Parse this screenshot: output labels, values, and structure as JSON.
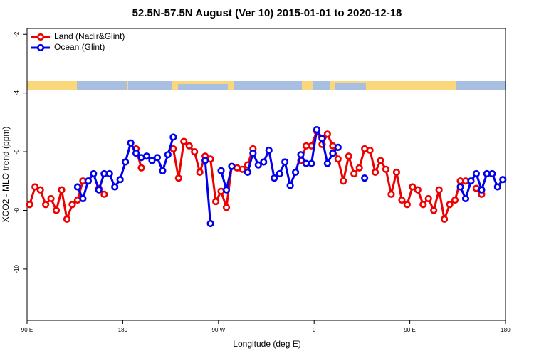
{
  "chart_data": {
    "type": "line",
    "title": "52.5N-57.5N August (Ver 10)   2015-01-01 to 2020-12-18",
    "x_label": "Longitude (deg E)",
    "y_label": "XCO2 - MLO trend (ppm)",
    "legend": "top-left",
    "xlim": [
      90,
      540
    ],
    "ylim": [
      -11.75,
      -1.8
    ],
    "xticks": [
      {
        "value": 90,
        "label": "90 E"
      },
      180,
      {
        "value": 270,
        "label": "90 W"
      },
      {
        "value": 360,
        "label": "0"
      },
      {
        "value": 450,
        "label": "90 E"
      },
      {
        "value": 540,
        "label": "180"
      }
    ],
    "yticks": [
      -2,
      -4,
      -6,
      -8,
      -10
    ],
    "x": [
      92.5,
      97.5,
      102.5,
      107.5,
      112.5,
      117.5,
      122.5,
      127.5,
      132.5,
      137.5,
      142.5,
      147.5,
      152.5,
      157.5,
      162.5,
      167.5,
      172.5,
      177.5,
      182.5,
      187.5,
      192.5,
      197.5,
      202.5,
      207.5,
      212.5,
      217.5,
      222.5,
      227.5,
      232.5,
      237.5,
      242.5,
      247.5,
      252.5,
      257.5,
      262.5,
      267.5,
      272.5,
      277.5,
      282.5,
      287.5,
      292.5,
      297.5,
      302.5,
      307.5,
      312.5,
      317.5,
      322.5,
      327.5,
      332.5,
      337.5,
      342.5,
      347.5,
      352.5,
      357.5,
      362.5,
      367.5,
      372.5,
      377.5,
      382.5,
      387.5,
      392.5,
      397.5,
      402.5,
      407.5,
      412.5,
      417.5,
      422.5,
      427.5,
      432.5,
      437.5,
      442.5,
      447.5,
      452.5,
      457.5,
      462.5,
      467.5,
      472.5,
      477.5,
      482.5,
      487.5,
      492.5,
      497.5,
      502.5,
      507.5,
      512.5,
      517.5,
      522.5,
      527.5,
      532.5,
      537.5
    ],
    "series": [
      {
        "name": "Land (Nadir&Glint)",
        "color": "#ee0000",
        "values": [
          -7.8,
          -7.2,
          -7.3,
          -7.8,
          -7.6,
          -8.0,
          -7.3,
          -8.3,
          -7.8,
          -7.65,
          -7.0,
          -7.0,
          null,
          -7.25,
          -7.45,
          null,
          null,
          null,
          null,
          null,
          -5.9,
          -6.55,
          null,
          null,
          null,
          null,
          null,
          -5.9,
          -6.9,
          -5.65,
          -5.8,
          -6.0,
          -6.7,
          -6.15,
          -6.25,
          -7.7,
          -7.35,
          -7.9,
          -6.5,
          -6.55,
          -6.6,
          -6.45,
          -5.9,
          null,
          null,
          null,
          null,
          null,
          null,
          null,
          null,
          -6.3,
          -5.8,
          -5.8,
          -5.3,
          -5.75,
          -5.4,
          -5.8,
          -6.25,
          -7.0,
          -6.15,
          -6.75,
          -6.55,
          -5.9,
          -5.95,
          -6.7,
          -6.3,
          -6.6,
          -7.45,
          -6.7,
          -7.65,
          -7.8,
          -7.2,
          -7.3,
          -7.8,
          -7.6,
          -8.0,
          -7.3,
          -8.3,
          -7.8,
          -7.65,
          -7.0,
          -7.0,
          null,
          -7.25,
          -7.45,
          null,
          null,
          null,
          null
        ]
      },
      {
        "name": "Ocean (Glint)",
        "color": "#0000ee",
        "values": [
          null,
          null,
          null,
          null,
          null,
          null,
          null,
          null,
          null,
          -7.2,
          -7.6,
          -7.0,
          -6.75,
          -7.3,
          -6.75,
          -6.75,
          -7.2,
          -6.95,
          -6.35,
          -5.7,
          -6.05,
          -6.2,
          -6.15,
          -6.3,
          -6.2,
          -6.65,
          -6.1,
          -5.5,
          null,
          null,
          null,
          null,
          null,
          -6.3,
          -8.45,
          null,
          -6.65,
          -7.3,
          -6.5,
          null,
          null,
          -6.7,
          -6.05,
          -6.45,
          -6.35,
          -5.95,
          -6.9,
          -6.75,
          -6.35,
          -7.15,
          -6.7,
          -6.1,
          -6.4,
          -6.4,
          -5.25,
          -5.55,
          -6.4,
          -6.05,
          -5.85,
          null,
          null,
          null,
          null,
          -6.9,
          null,
          null,
          null,
          null,
          null,
          null,
          null,
          null,
          null,
          null,
          null,
          null,
          null,
          null,
          null,
          null,
          null,
          -7.2,
          -7.6,
          -7.0,
          -6.75,
          -7.3,
          -6.75,
          -6.75,
          -7.2,
          -6.95
        ]
      }
    ]
  }
}
